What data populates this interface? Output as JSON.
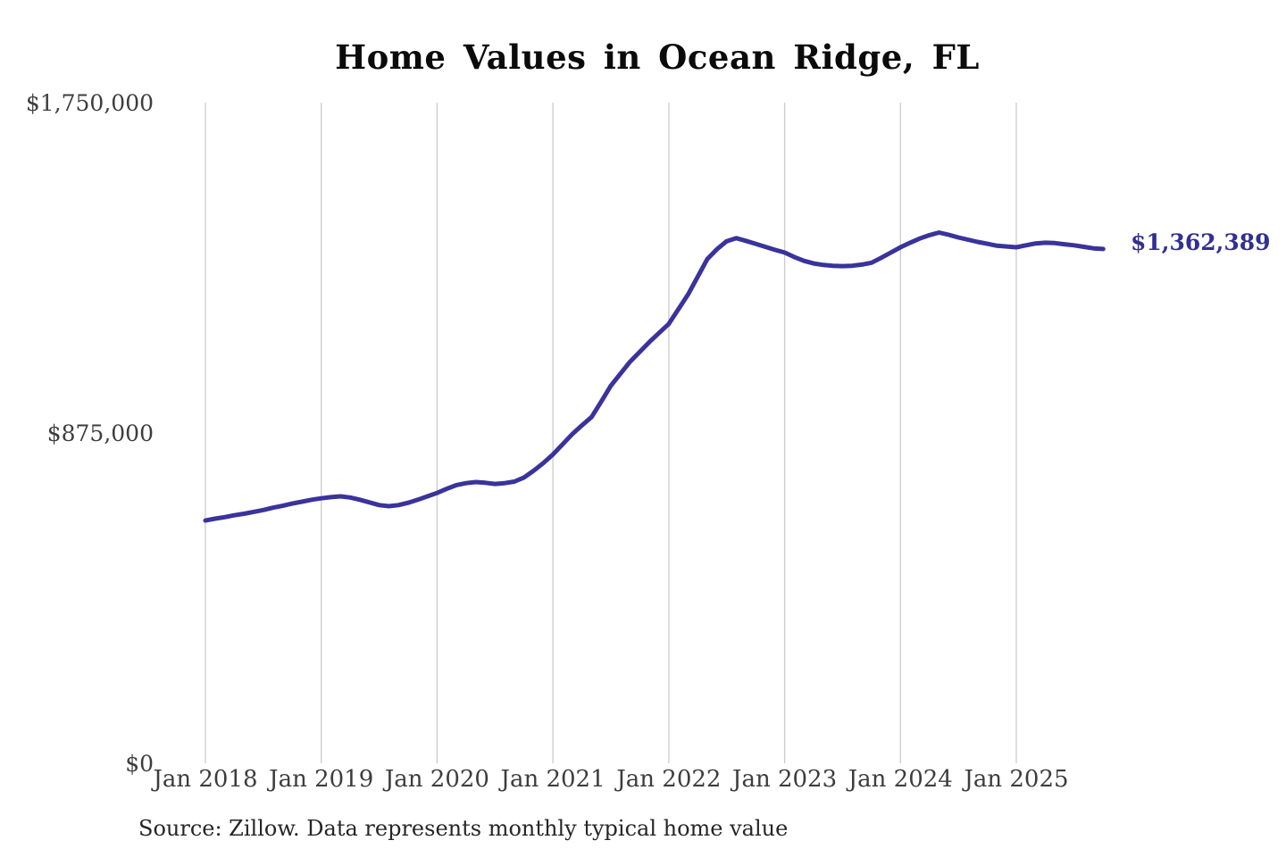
{
  "page": {
    "background": "#ffffff"
  },
  "chart": {
    "title": "Home Values in Ocean Ridge, FL",
    "source": "Source: Zillow. Data represents monthly typical home value",
    "end_label": "$1,362,389",
    "colors": {
      "line": "#3a339c",
      "annotation": "#32308f",
      "grid": "#cccccc",
      "axis_text": "#3d3d3d",
      "title_text": "#0b0b0b",
      "source_text": "#262626"
    }
  },
  "chart_data": {
    "type": "line",
    "title": "Home Values in Ocean Ridge, FL",
    "xlabel": "",
    "ylabel": "",
    "ylim": [
      0,
      1750000
    ],
    "grid": "vertical-only",
    "legend": "none",
    "frequency": "monthly",
    "y_tick_labels": [
      "$0",
      "$875,000",
      "$1,750,000"
    ],
    "y_tick_values": [
      0,
      875000,
      1750000
    ],
    "x_tick_labels": [
      "Jan 2018",
      "Jan 2019",
      "Jan 2020",
      "Jan 2021",
      "Jan 2022",
      "Jan 2023",
      "Jan 2024",
      "Jan 2025"
    ],
    "x_tick_month_indices": [
      0,
      12,
      24,
      36,
      48,
      60,
      72,
      84
    ],
    "x_months": [
      "2018-01",
      "2018-02",
      "2018-03",
      "2018-04",
      "2018-05",
      "2018-06",
      "2018-07",
      "2018-08",
      "2018-09",
      "2018-10",
      "2018-11",
      "2018-12",
      "2019-01",
      "2019-02",
      "2019-03",
      "2019-04",
      "2019-05",
      "2019-06",
      "2019-07",
      "2019-08",
      "2019-09",
      "2019-10",
      "2019-11",
      "2019-12",
      "2020-01",
      "2020-02",
      "2020-03",
      "2020-04",
      "2020-05",
      "2020-06",
      "2020-07",
      "2020-08",
      "2020-09",
      "2020-10",
      "2020-11",
      "2020-12",
      "2021-01",
      "2021-02",
      "2021-03",
      "2021-04",
      "2021-05",
      "2021-06",
      "2021-07",
      "2021-08",
      "2021-09",
      "2021-10",
      "2021-11",
      "2021-12",
      "2022-01",
      "2022-02",
      "2022-03",
      "2022-04",
      "2022-05",
      "2022-06",
      "2022-07",
      "2022-08",
      "2022-09",
      "2022-10",
      "2022-11",
      "2022-12",
      "2023-01",
      "2023-02",
      "2023-03",
      "2023-04",
      "2023-05",
      "2023-06",
      "2023-07",
      "2023-08",
      "2023-09",
      "2023-10",
      "2023-11",
      "2023-12",
      "2024-01",
      "2024-02",
      "2024-03",
      "2024-04",
      "2024-05",
      "2024-06",
      "2024-07",
      "2024-08",
      "2024-09",
      "2024-10",
      "2024-11",
      "2024-12",
      "2025-01",
      "2025-02",
      "2025-03",
      "2025-04",
      "2025-05",
      "2025-06",
      "2025-07",
      "2025-08",
      "2025-09",
      "2025-10"
    ],
    "series": [
      {
        "name": "Typical home value",
        "values": [
          643000,
          648000,
          652000,
          657000,
          661000,
          666000,
          671000,
          677000,
          682000,
          688000,
          693000,
          698000,
          702000,
          705000,
          707000,
          704000,
          698000,
          691000,
          684000,
          681000,
          684000,
          690000,
          698000,
          707000,
          716000,
          727000,
          737000,
          742000,
          745000,
          743000,
          740000,
          742000,
          746000,
          757000,
          775000,
          795000,
          818000,
          845000,
          872000,
          895000,
          917000,
          958000,
          1000000,
          1032000,
          1064000,
          1090000,
          1116000,
          1140000,
          1164000,
          1203000,
          1242000,
          1289000,
          1336000,
          1362000,
          1383000,
          1391000,
          1384000,
          1376000,
          1368000,
          1360000,
          1353000,
          1341000,
          1331000,
          1324000,
          1320000,
          1318000,
          1317000,
          1318000,
          1321000,
          1326000,
          1339000,
          1353000,
          1367000,
          1379000,
          1390000,
          1399000,
          1406000,
          1400000,
          1393000,
          1387000,
          1381000,
          1376000,
          1371000,
          1369000,
          1367000,
          1372000,
          1377000,
          1379000,
          1378000,
          1375000,
          1372000,
          1368000,
          1364000,
          1362389
        ]
      }
    ],
    "final_value": 1362389,
    "annotation": "$1,362,389"
  }
}
